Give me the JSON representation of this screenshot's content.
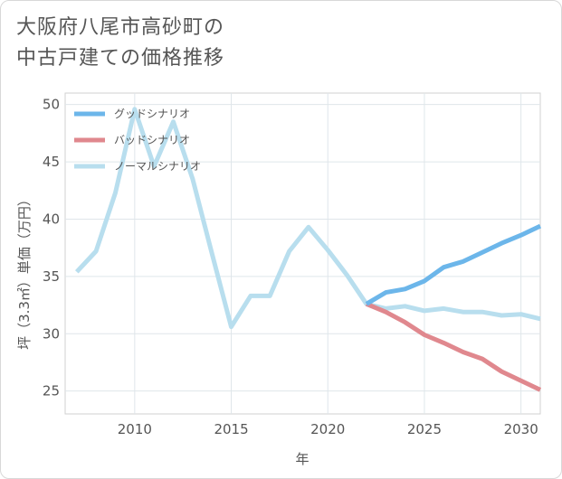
{
  "title": "大阪府八尾市高砂町の\n中古戸建ての価格推移",
  "chart_data": {
    "type": "line",
    "xlabel": "年",
    "ylabel": "坪（3.3㎡）単価（万円）",
    "xlim": [
      2006.4,
      2031
    ],
    "ylim": [
      23,
      51
    ],
    "xticks": [
      2010,
      2015,
      2020,
      2025,
      2030
    ],
    "yticks": [
      25,
      30,
      35,
      40,
      45,
      50
    ],
    "grid": true,
    "legend_position": "top-left",
    "series": [
      {
        "name": "グッドシナリオ",
        "color": "#6cb6ea",
        "x": [
          2022,
          2023,
          2024,
          2025,
          2026,
          2027,
          2028,
          2029,
          2030,
          2031
        ],
        "y": [
          32.6,
          33.6,
          33.9,
          34.6,
          35.8,
          36.3,
          37.1,
          37.9,
          38.6,
          39.4
        ]
      },
      {
        "name": "バッドシナリオ",
        "color": "#e0888e",
        "x": [
          2022,
          2023,
          2024,
          2025,
          2026,
          2027,
          2028,
          2029,
          2030,
          2031
        ],
        "y": [
          32.6,
          31.9,
          31.0,
          29.9,
          29.2,
          28.4,
          27.8,
          26.7,
          25.9,
          25.1
        ]
      },
      {
        "name": "ノーマルシナリオ",
        "color": "#b8deee",
        "x": [
          2007,
          2008,
          2009,
          2010,
          2011,
          2012,
          2013,
          2014,
          2015,
          2016,
          2017,
          2018,
          2019,
          2020,
          2021,
          2022,
          2023,
          2024,
          2025,
          2026,
          2027,
          2028,
          2029,
          2030,
          2031
        ],
        "y": [
          35.4,
          37.2,
          42.3,
          49.6,
          44.6,
          48.5,
          43.5,
          37.0,
          30.6,
          33.3,
          33.3,
          37.2,
          39.3,
          37.3,
          35.1,
          32.6,
          32.2,
          32.4,
          32.0,
          32.2,
          31.9,
          31.9,
          31.6,
          31.7,
          31.3
        ]
      }
    ]
  }
}
